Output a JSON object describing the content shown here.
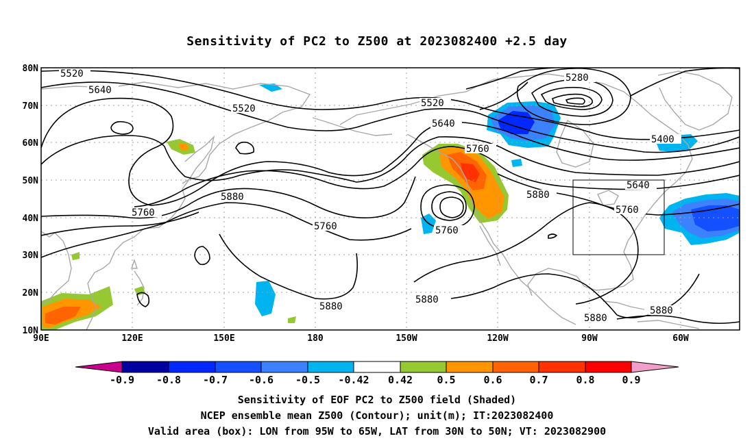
{
  "title": "Sensitivity of PC2 to Z500 at 2023082400 +2.5 day",
  "lat_labels": [
    "80N",
    "70N",
    "60N",
    "50N",
    "40N",
    "30N",
    "20N",
    "10N"
  ],
  "lon_labels": [
    "90E",
    "120E",
    "150E",
    "180",
    "150W",
    "120W",
    "90W",
    "60W"
  ],
  "contour_labels": [
    {
      "text": "5520"
    },
    {
      "text": "5640"
    },
    {
      "text": "5520"
    },
    {
      "text": "5520"
    },
    {
      "text": "5640"
    },
    {
      "text": "5760"
    },
    {
      "text": "5760"
    },
    {
      "text": "5880"
    },
    {
      "text": "5760"
    },
    {
      "text": "5760"
    },
    {
      "text": "5880"
    },
    {
      "text": "5880"
    },
    {
      "text": "5880"
    },
    {
      "text": "5880"
    },
    {
      "text": "5880"
    },
    {
      "text": "5280"
    },
    {
      "text": "5400"
    },
    {
      "text": "5640"
    },
    {
      "text": "5760"
    }
  ],
  "colorbar": {
    "labels": [
      "-0.9",
      "-0.8",
      "-0.7",
      "-0.6",
      "-0.5",
      "-0.42",
      "0.42",
      "0.5",
      "0.6",
      "0.7",
      "0.8",
      "0.9"
    ],
    "colors": [
      "#c8008c",
      "#0000a0",
      "#0028ff",
      "#1450ff",
      "#3c82ff",
      "#00b4f0",
      "#ffffff",
      "#96c832",
      "#ff9600",
      "#ff6400",
      "#ff3200",
      "#ff0000",
      "#f0a0c8"
    ]
  },
  "shading_colors": {
    "green": "#96c832",
    "orange": "#ff9600",
    "orange_red": "#ff6400",
    "red": "#ff3200",
    "cyan": "#00b4f0",
    "light_blue": "#3c82ff",
    "blue": "#1450ff",
    "dark_blue": "#0028ff"
  },
  "valid_box": {
    "lon_from": "95W",
    "lon_to": "65W",
    "lat_from": "30N",
    "lat_to": "50N"
  },
  "captions": {
    "line1": "Sensitivity of EOF PC2 to Z500 field (Shaded)",
    "line2": "NCEP ensemble mean Z500 (Contour); unit(m); IT:2023082400",
    "line3": "Valid area (box): LON from 95W to 65W, LAT from 30N to 50N; VT: 2023082900"
  }
}
